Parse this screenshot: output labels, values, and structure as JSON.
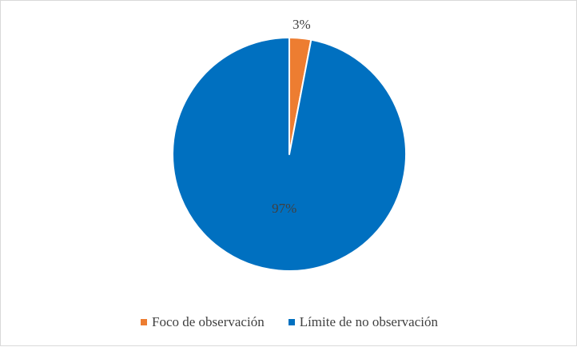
{
  "chart_data": {
    "type": "pie",
    "title": "",
    "series": [
      {
        "name": "Foco de observación",
        "value": 3,
        "label": "3%",
        "color": "#ed7d31"
      },
      {
        "name": "Límite de no observación",
        "value": 97,
        "label": "97%",
        "color": "#0070c0"
      }
    ],
    "legend": {
      "position": "bottom"
    }
  }
}
